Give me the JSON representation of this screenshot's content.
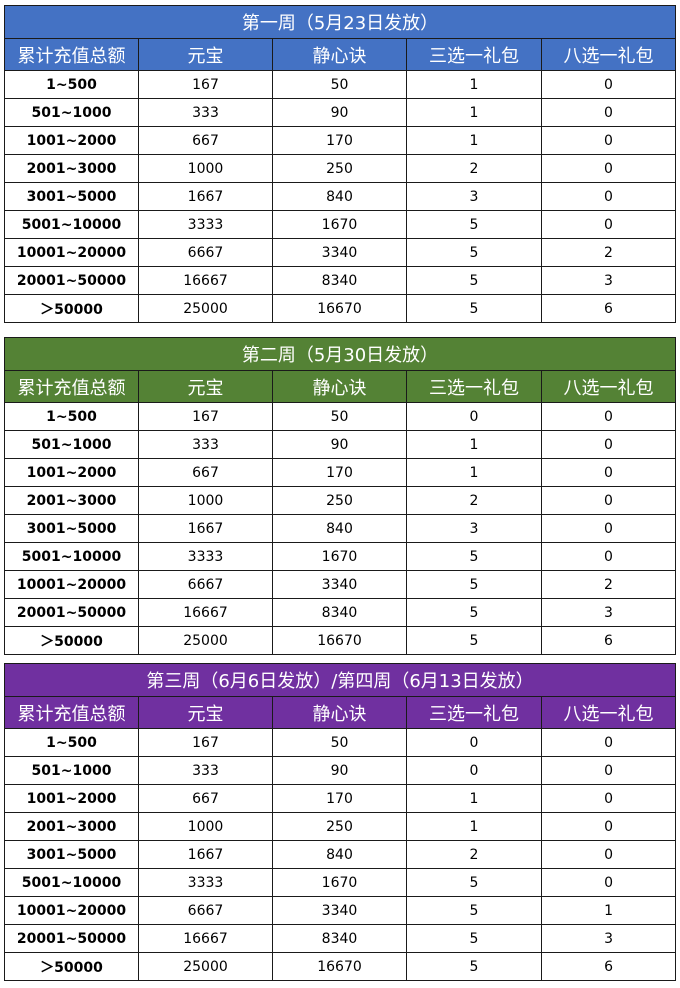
{
  "colors": {
    "week1_header": "#4472c4",
    "week2_header": "#548235",
    "week3_header": "#7030a0"
  },
  "columns": [
    "累计充值总额",
    "元宝",
    "静心诀",
    "三选一礼包",
    "八选一礼包"
  ],
  "sections": [
    {
      "title": "第一周（5月23日发放）",
      "rows": [
        [
          "1~500",
          "167",
          "50",
          "1",
          "0"
        ],
        [
          "501~1000",
          "333",
          "90",
          "1",
          "0"
        ],
        [
          "1001~2000",
          "667",
          "170",
          "1",
          "0"
        ],
        [
          "2001~3000",
          "1000",
          "250",
          "2",
          "0"
        ],
        [
          "3001~5000",
          "1667",
          "840",
          "3",
          "0"
        ],
        [
          "5001~10000",
          "3333",
          "1670",
          "5",
          "0"
        ],
        [
          "10001~20000",
          "6667",
          "3340",
          "5",
          "2"
        ],
        [
          "20001~50000",
          "16667",
          "8340",
          "5",
          "3"
        ],
        [
          "＞50000",
          "25000",
          "16670",
          "5",
          "6"
        ]
      ]
    },
    {
      "title": "第二周（5月30日发放）",
      "rows": [
        [
          "1~500",
          "167",
          "50",
          "0",
          "0"
        ],
        [
          "501~1000",
          "333",
          "90",
          "1",
          "0"
        ],
        [
          "1001~2000",
          "667",
          "170",
          "1",
          "0"
        ],
        [
          "2001~3000",
          "1000",
          "250",
          "2",
          "0"
        ],
        [
          "3001~5000",
          "1667",
          "840",
          "3",
          "0"
        ],
        [
          "5001~10000",
          "3333",
          "1670",
          "5",
          "0"
        ],
        [
          "10001~20000",
          "6667",
          "3340",
          "5",
          "2"
        ],
        [
          "20001~50000",
          "16667",
          "8340",
          "5",
          "3"
        ],
        [
          "＞50000",
          "25000",
          "16670",
          "5",
          "6"
        ]
      ]
    },
    {
      "title": "第三周（6月6日发放）/第四周（6月13日发放）",
      "rows": [
        [
          "1~500",
          "167",
          "50",
          "0",
          "0"
        ],
        [
          "501~1000",
          "333",
          "90",
          "0",
          "0"
        ],
        [
          "1001~2000",
          "667",
          "170",
          "1",
          "0"
        ],
        [
          "2001~3000",
          "1000",
          "250",
          "1",
          "0"
        ],
        [
          "3001~5000",
          "1667",
          "840",
          "2",
          "0"
        ],
        [
          "5001~10000",
          "3333",
          "1670",
          "5",
          "0"
        ],
        [
          "10001~20000",
          "6667",
          "3340",
          "5",
          "1"
        ],
        [
          "20001~50000",
          "16667",
          "8340",
          "5",
          "3"
        ],
        [
          "＞50000",
          "25000",
          "16670",
          "5",
          "6"
        ]
      ]
    }
  ]
}
